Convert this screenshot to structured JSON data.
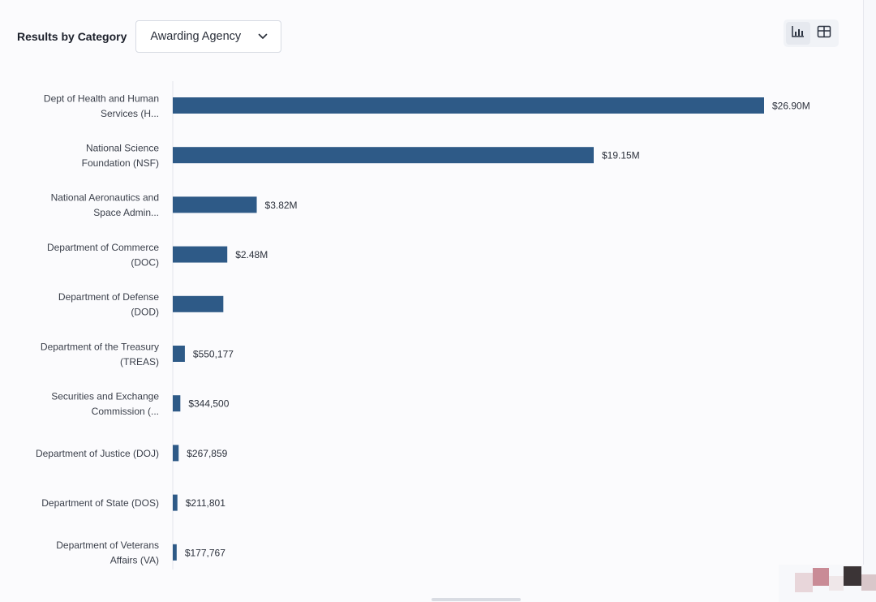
{
  "header": {
    "title": "Results by Category",
    "dropdown": {
      "selected": "Awarding Agency"
    }
  },
  "view_toggle": {
    "chart_icon": "bar-chart-icon",
    "table_icon": "table-icon",
    "active": "chart"
  },
  "colors": {
    "bar": "#2e5a87",
    "text": "#3a3f4a",
    "background": "#fbfbfd"
  },
  "chart_data": {
    "type": "bar",
    "orientation": "horizontal",
    "title": "",
    "xlabel": "",
    "ylabel": "",
    "xlim": [
      0,
      26900000
    ],
    "grid": false,
    "categories": [
      [
        "Dept of Health and Human",
        "Services (H..."
      ],
      [
        "National Science",
        "Foundation (NSF)"
      ],
      [
        "National Aeronautics and",
        "Space Admin..."
      ],
      [
        "Department of Commerce",
        "(DOC)"
      ],
      [
        "Department of Defense",
        "(DOD)"
      ],
      [
        "Department of the Treasury",
        "(TREAS)"
      ],
      [
        "Securities and Exchange",
        "Commission (..."
      ],
      [
        "Department of Justice (DOJ)"
      ],
      [
        "Department of State (DOS)"
      ],
      [
        "Department of Veterans",
        "Affairs (VA)"
      ]
    ],
    "values": [
      26900000,
      19150000,
      3820000,
      2480000,
      2300000,
      550177,
      344500,
      267859,
      211801,
      177767
    ],
    "value_labels": [
      "$26.90M",
      "$19.15M",
      "$3.82M",
      "$2.48M",
      "",
      "$550,177",
      "$344,500",
      "$267,859",
      "$211,801",
      "$177,767"
    ]
  }
}
